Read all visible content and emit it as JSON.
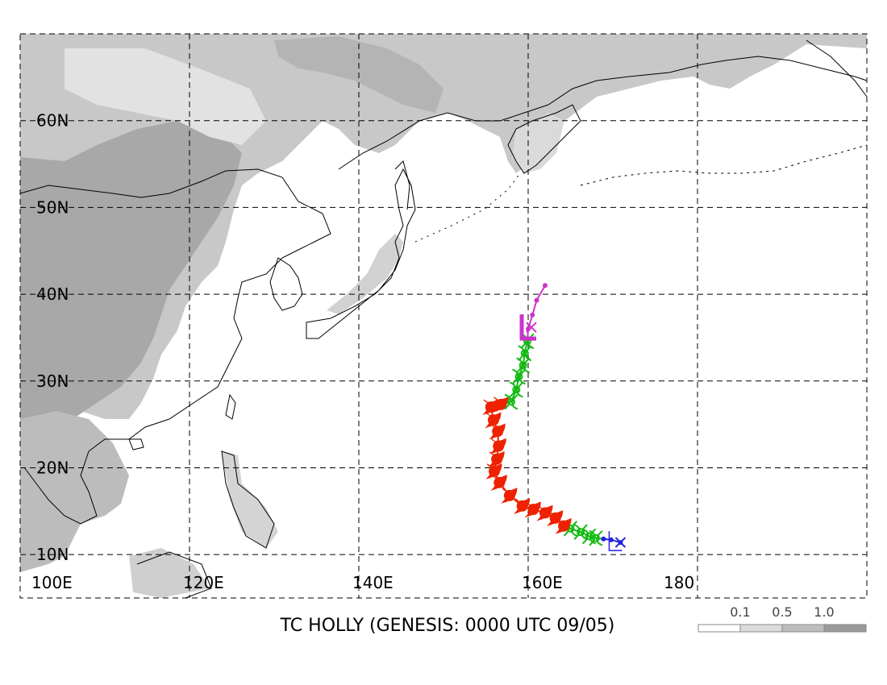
{
  "title": "TC HOLLY (GENESIS: 0000 UTC 09/05)",
  "lat_labels": [
    "60N",
    "50N",
    "40N",
    "30N",
    "20N",
    "10N"
  ],
  "lon_labels": [
    "100E",
    "120E",
    "140E",
    "160E",
    "180"
  ],
  "legend": {
    "labels": [
      "0.1",
      "0.5",
      "1.0"
    ],
    "colors": [
      "#ffffff",
      "#dcdcdc",
      "#bdbdbd",
      "#9a9a9a"
    ]
  },
  "map_extent": {
    "lon": [
      100,
      200
    ],
    "lat": [
      5,
      70
    ]
  },
  "track_colors": {
    "depression": "#2222dd",
    "tropical_storm": "#11bb11",
    "typhoon": "#ee2200",
    "extratropical": "#cc33cc"
  },
  "track": [
    {
      "lon": 170.9,
      "lat": 11.4,
      "stage": "depression"
    },
    {
      "lon": 169.8,
      "lat": 11.7,
      "stage": "depression"
    },
    {
      "lon": 168.9,
      "lat": 11.8,
      "stage": "depression"
    },
    {
      "lon": 168.0,
      "lat": 11.9,
      "stage": "tropical_storm"
    },
    {
      "lon": 167.2,
      "lat": 12.1,
      "stage": "tropical_storm"
    },
    {
      "lon": 166.2,
      "lat": 12.6,
      "stage": "tropical_storm"
    },
    {
      "lon": 165.0,
      "lat": 13.0,
      "stage": "tropical_storm"
    },
    {
      "lon": 164.2,
      "lat": 13.3,
      "stage": "typhoon"
    },
    {
      "lon": 163.2,
      "lat": 14.2,
      "stage": "typhoon"
    },
    {
      "lon": 162.0,
      "lat": 14.8,
      "stage": "typhoon"
    },
    {
      "lon": 160.6,
      "lat": 15.2,
      "stage": "typhoon"
    },
    {
      "lon": 159.3,
      "lat": 15.6,
      "stage": "typhoon"
    },
    {
      "lon": 157.8,
      "lat": 16.8,
      "stage": "typhoon"
    },
    {
      "lon": 156.6,
      "lat": 18.3,
      "stage": "typhoon"
    },
    {
      "lon": 156.0,
      "lat": 19.6,
      "stage": "typhoon"
    },
    {
      "lon": 156.3,
      "lat": 21.0,
      "stage": "typhoon"
    },
    {
      "lon": 156.5,
      "lat": 22.5,
      "stage": "typhoon"
    },
    {
      "lon": 156.4,
      "lat": 24.2,
      "stage": "typhoon"
    },
    {
      "lon": 155.9,
      "lat": 25.5,
      "stage": "typhoon"
    },
    {
      "lon": 155.6,
      "lat": 27.0,
      "stage": "typhoon"
    },
    {
      "lon": 156.8,
      "lat": 27.3,
      "stage": "typhoon"
    },
    {
      "lon": 158.0,
      "lat": 27.6,
      "stage": "tropical_storm"
    },
    {
      "lon": 158.6,
      "lat": 29.0,
      "stage": "tropical_storm"
    },
    {
      "lon": 158.9,
      "lat": 30.5,
      "stage": "tropical_storm"
    },
    {
      "lon": 159.4,
      "lat": 31.8,
      "stage": "tropical_storm"
    },
    {
      "lon": 159.6,
      "lat": 33.2,
      "stage": "tropical_storm"
    },
    {
      "lon": 159.9,
      "lat": 34.6,
      "stage": "tropical_storm"
    },
    {
      "lon": 160.0,
      "lat": 36.0,
      "stage": "extratropical"
    },
    {
      "lon": 160.5,
      "lat": 37.6,
      "stage": "extratropical"
    },
    {
      "lon": 161.0,
      "lat": 39.3,
      "stage": "extratropical"
    },
    {
      "lon": 162.0,
      "lat": 41.0,
      "stage": "extratropical"
    }
  ]
}
